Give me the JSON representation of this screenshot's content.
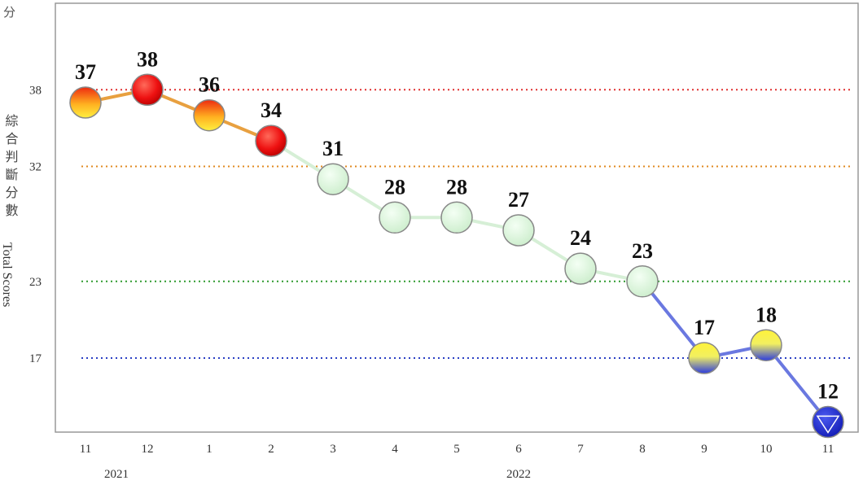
{
  "chart_data": {
    "type": "line",
    "unit_label": "分",
    "ylabel_cjk": "綜合判斷分數",
    "ylabel_en": "Total Scores",
    "categories": [
      "11",
      "12",
      "1",
      "2",
      "3",
      "4",
      "5",
      "6",
      "7",
      "8",
      "9",
      "10",
      "11"
    ],
    "year_labels": [
      {
        "text": "2021",
        "index": 0.5
      },
      {
        "text": "2022",
        "index": 7
      }
    ],
    "values": [
      37,
      38,
      36,
      34,
      31,
      28,
      28,
      27,
      24,
      23,
      17,
      18,
      12
    ],
    "signal_colors": [
      "red-yellow",
      "red",
      "red-yellow",
      "red",
      "green",
      "green",
      "green",
      "green",
      "green",
      "green",
      "yellow-blue",
      "yellow-blue",
      "blue"
    ],
    "thresholds": [
      {
        "value": 38,
        "label": "38",
        "color": "#e03030"
      },
      {
        "value": 32,
        "label": "32",
        "color": "#e08a20"
      },
      {
        "value": 23,
        "label": "23",
        "color": "#2e9a2e"
      },
      {
        "value": 17,
        "label": "17",
        "color": "#2a3fc4"
      }
    ],
    "colors": {
      "red": "#ee1111",
      "yellow": "#ffee33",
      "green": "#d8f5d8",
      "blue": "#1a22cc",
      "red_line": "#e8a040",
      "green_line": "#d6efd6",
      "blue_line": "#6a78e0"
    }
  }
}
